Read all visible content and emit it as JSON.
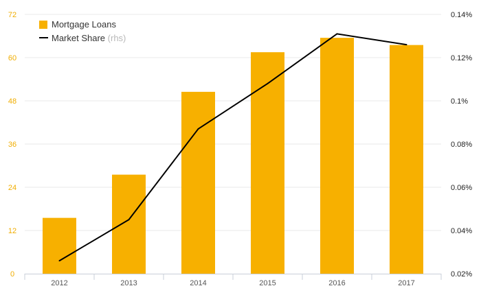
{
  "chart_data": {
    "type": "bar",
    "categories": [
      "2012",
      "2013",
      "2014",
      "2015",
      "2016",
      "2017"
    ],
    "series": [
      {
        "name": "Mortgage Loans",
        "type": "bar",
        "axis": "left",
        "values": [
          15.5,
          27.5,
          50.5,
          61.5,
          65.5,
          63.5
        ]
      },
      {
        "name": "Market Share",
        "type": "line",
        "axis": "right",
        "values": [
          0.026,
          0.045,
          0.087,
          0.108,
          0.131,
          0.126
        ]
      }
    ],
    "y_left": {
      "ylim": [
        0,
        72
      ],
      "ticks": [
        0,
        12,
        24,
        36,
        48,
        60,
        72
      ]
    },
    "y_right": {
      "ylim": [
        0.02,
        0.14
      ],
      "ticks": [
        0.02,
        0.04,
        0.06,
        0.08,
        0.1,
        0.12,
        0.14
      ],
      "tick_labels": [
        "0.02%",
        "0.04%",
        "0.06%",
        "0.08%",
        "0.1%",
        "0.12%",
        "0.14%"
      ]
    },
    "legend": {
      "position": "top-left",
      "items": [
        {
          "label": "Mortgage Loans",
          "suffix": ""
        },
        {
          "label": "Market Share",
          "suffix": "(rhs)"
        }
      ]
    },
    "colors": {
      "bar": "#f7b000",
      "line": "#000000",
      "left_ticks": "#f0ad00",
      "grid": "#e8e8e8"
    },
    "grid": true
  }
}
